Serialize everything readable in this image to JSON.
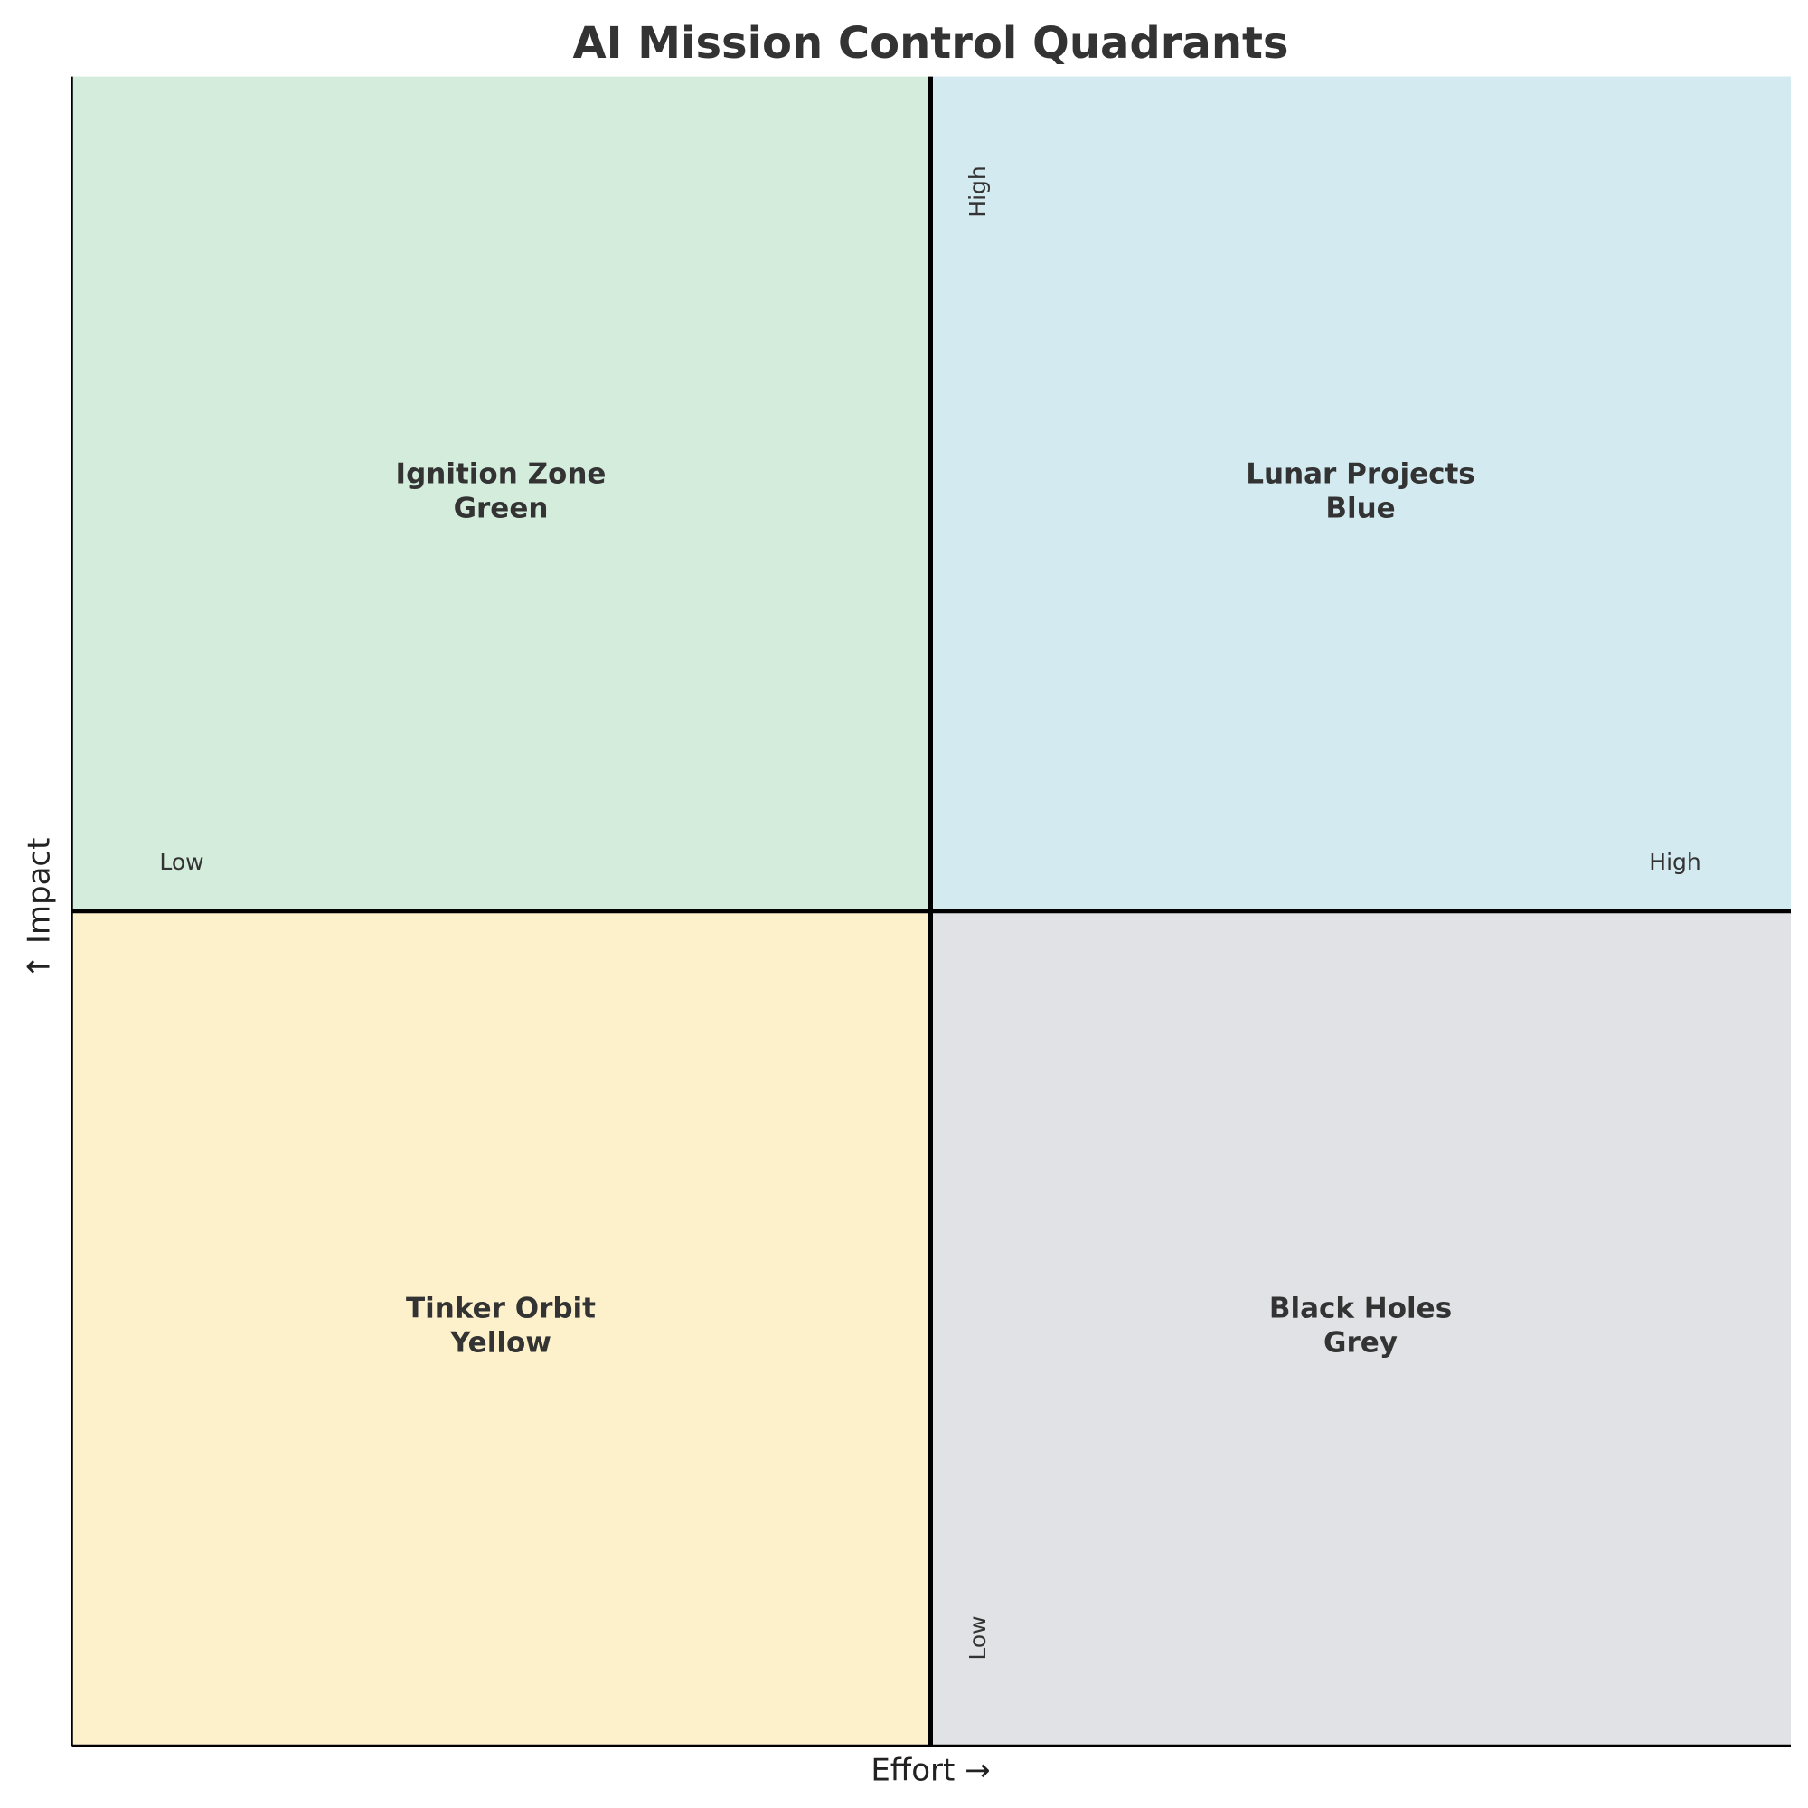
{
  "title": "AI Mission Control Quadrants",
  "x_axis": {
    "label": "Effort →",
    "low": "Low",
    "high": "High"
  },
  "y_axis": {
    "label": "↑ Impact",
    "low": "Low",
    "high": "High"
  },
  "quadrants": [
    {
      "name": "Ignition Zone",
      "color_name": "Green"
    },
    {
      "name": "Lunar Projects",
      "color_name": "Blue"
    },
    {
      "name": "Tinker Orbit",
      "color_name": "Yellow"
    },
    {
      "name": "Black Holes",
      "color_name": "Grey"
    }
  ]
}
